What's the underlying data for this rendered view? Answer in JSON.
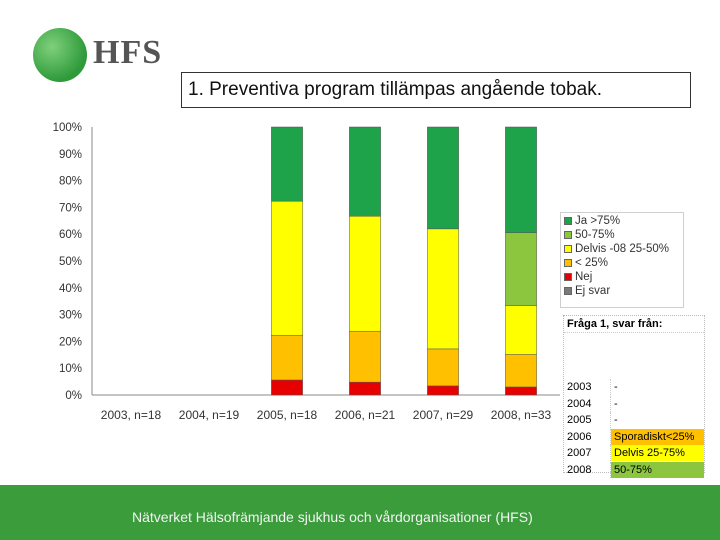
{
  "header": {
    "logo_text": "HFS",
    "title": "1. Preventiva program tillämpas angående tobak."
  },
  "legend": {
    "items": [
      {
        "label": "Ja >75%",
        "color": "#1ea24a"
      },
      {
        "label": "50-75%",
        "color": "#8cc63f"
      },
      {
        "label": "Delvis -08 25-50%",
        "color": "#ffff00"
      },
      {
        "label": "< 25%",
        "color": "#ffc000"
      },
      {
        "label": "Nej",
        "color": "#e60000"
      },
      {
        "label": "Ej svar",
        "color": "#7a7a7a"
      }
    ]
  },
  "info_table": {
    "header": "Fråga 1, svar från:",
    "rows": [
      {
        "year": "2003",
        "value": "-",
        "bg": "#ffffff"
      },
      {
        "year": "2004",
        "value": "-",
        "bg": "#ffffff"
      },
      {
        "year": "2005",
        "value": "-",
        "bg": "#ffffff"
      },
      {
        "year": "2006",
        "value": "Sporadiskt<25%",
        "bg": "#ffc000"
      },
      {
        "year": "2007",
        "value": "Delvis 25-75%",
        "bg": "#ffff00"
      },
      {
        "year": "2008",
        "value": "50-75%",
        "bg": "#8cc63f"
      }
    ]
  },
  "footer": {
    "text": "Nätverket Hälsofrämjande sjukhus och vårdorganisationer (HFS)"
  },
  "chart_data": {
    "type": "bar",
    "stacked": true,
    "title": "",
    "xlabel": "",
    "ylabel": "",
    "ylim": [
      0,
      100
    ],
    "yticks": [
      "0%",
      "10%",
      "20%",
      "30%",
      "40%",
      "50%",
      "60%",
      "70%",
      "80%",
      "90%",
      "100%"
    ],
    "categories": [
      "2003, n=18",
      "2004, n=19",
      "2005, n=18",
      "2006, n=21",
      "2007, n=29",
      "2008, n=33"
    ],
    "series": [
      {
        "name": "Nej",
        "color": "#e60000",
        "values": [
          0,
          0,
          5.6,
          4.8,
          3.4,
          3.0
        ]
      },
      {
        "name": "< 25%",
        "color": "#ffc000",
        "values": [
          0,
          0,
          16.7,
          19.0,
          13.8,
          12.1
        ]
      },
      {
        "name": "Delvis -08 25-50%",
        "color": "#ffff00",
        "values": [
          0,
          0,
          50.0,
          42.9,
          44.8,
          18.2
        ]
      },
      {
        "name": "50-75%",
        "color": "#8cc63f",
        "values": [
          0,
          0,
          0,
          0,
          0,
          27.3
        ]
      },
      {
        "name": "Ja >75%",
        "color": "#1ea24a",
        "values": [
          0,
          0,
          27.7,
          33.3,
          38.0,
          39.4
        ]
      }
    ]
  }
}
